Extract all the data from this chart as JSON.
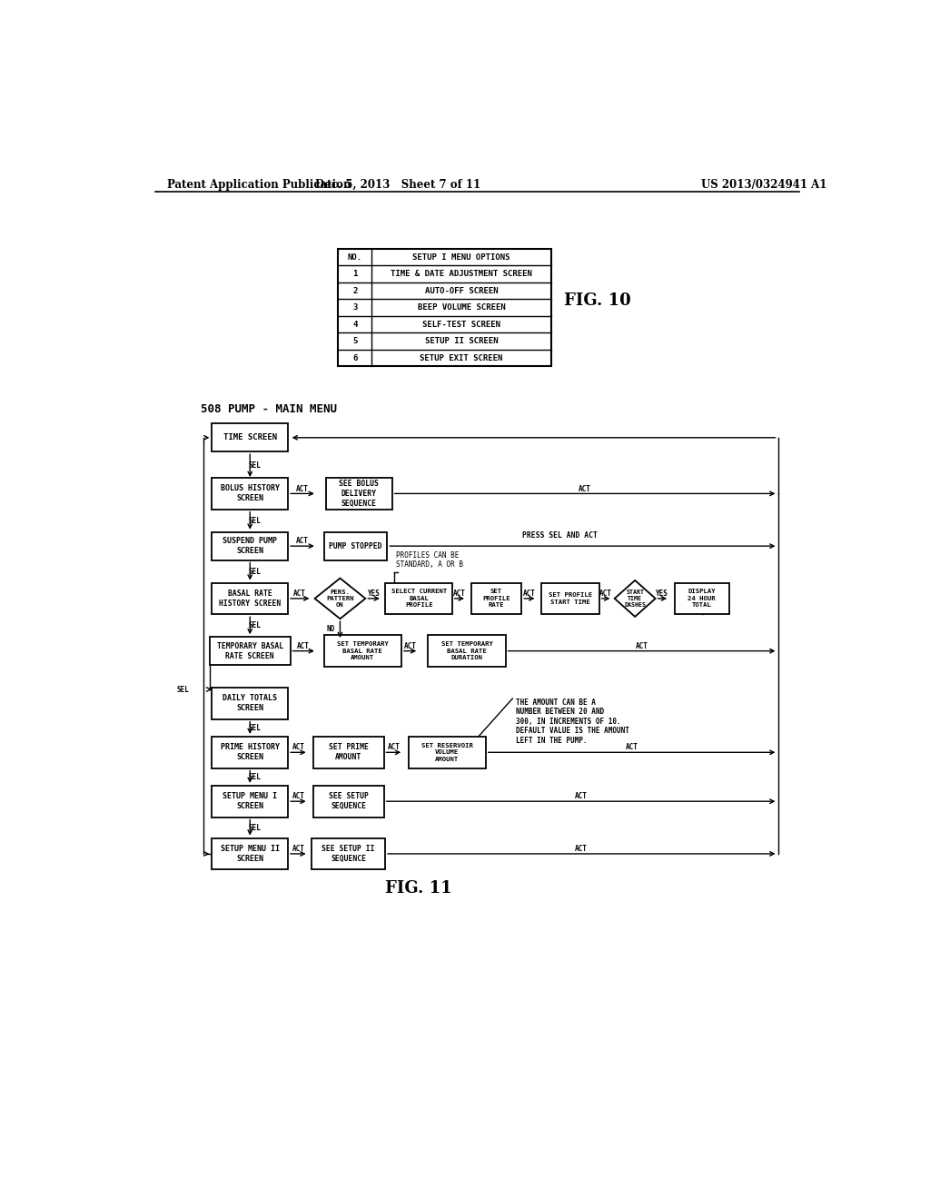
{
  "header_left": "Patent Application Publication",
  "header_center": "Dec. 5, 2013   Sheet 7 of 11",
  "header_right": "US 2013/0324941 A1",
  "fig10_title": "FIG. 10",
  "fig10_table": {
    "rows": [
      [
        "NO.",
        "SETUP I MENU OPTIONS"
      ],
      [
        "1",
        "TIME & DATE ADJUSTMENT SCREEN"
      ],
      [
        "2",
        "AUTO-OFF SCREEN"
      ],
      [
        "3",
        "BEEP VOLUME SCREEN"
      ],
      [
        "4",
        "SELF-TEST SCREEN"
      ],
      [
        "5",
        "SETUP II SCREEN"
      ],
      [
        "6",
        "SETUP EXIT SCREEN"
      ]
    ]
  },
  "fig11_title": "FIG. 11",
  "main_menu_label": "508 PUMP - MAIN MENU",
  "bg_color": "#ffffff",
  "line_color": "#000000",
  "text_color": "#000000"
}
